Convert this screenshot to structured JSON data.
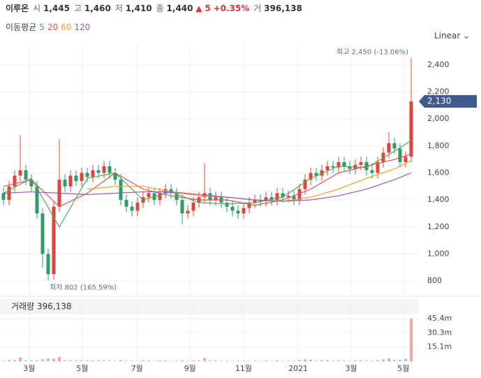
{
  "header": {
    "name": "이루온",
    "open_label": "시",
    "open": "1,445",
    "high_label": "고",
    "high": "1,460",
    "low_label": "저",
    "low": "1,410",
    "close_label": "종",
    "close": "1,440",
    "arrow": "▲",
    "change": "5",
    "change_pct": "+0.35%",
    "vol_label": "거",
    "volume": "396,138"
  },
  "ma_legend": {
    "title": "이동평균",
    "items": [
      "5",
      "20",
      "60",
      "120"
    ]
  },
  "scale_mode": "Linear",
  "chart_data": {
    "type": "candlestick",
    "max_label": "최고 2,450 (-13.06%)",
    "min_label": "최저 802 (165.59%)",
    "last_price": {
      "value": 2130,
      "label": "2,130"
    },
    "up_color": "#e0453c",
    "down_color": "#2a9d6a",
    "xlim": [
      -0.625,
      74.375
    ],
    "xticks": [
      {
        "value": 4.6,
        "label": "3월"
      },
      {
        "value": 14.1,
        "label": "5월"
      },
      {
        "value": 23.9,
        "label": "7월"
      },
      {
        "value": 33.4,
        "label": "9월"
      },
      {
        "value": 43,
        "label": "11월"
      },
      {
        "value": 52.75,
        "label": "2021"
      },
      {
        "value": 62.25,
        "label": "3월"
      },
      {
        "value": 71.6,
        "label": "5월"
      }
    ],
    "ylim": [
      707,
      2493
    ],
    "yticks": [
      800,
      {
        "value": 1000,
        "label": "1,000"
      },
      {
        "value": 1200,
        "label": "1,200"
      },
      {
        "value": 1400,
        "label": "1,400"
      },
      {
        "value": 1600,
        "label": "1,600"
      },
      {
        "value": 1800,
        "label": "1,800"
      },
      {
        "value": 2000,
        "label": "2,000"
      },
      {
        "value": 2200,
        "label": "2,200"
      },
      {
        "value": 2400,
        "label": "2,400"
      }
    ],
    "open": [
      1450,
      1400,
      1500,
      1580,
      1620,
      1550,
      1500,
      1300,
      1000,
      850,
      1350,
      1550,
      1500,
      1580,
      1540,
      1600,
      1570,
      1620,
      1600,
      1650,
      1600,
      1550,
      1400,
      1350,
      1320,
      1380,
      1420,
      1450,
      1400,
      1450,
      1480,
      1450,
      1400,
      1300,
      1320,
      1380,
      1420,
      1450,
      1400,
      1420,
      1380,
      1350,
      1320,
      1300,
      1340,
      1380,
      1400,
      1390,
      1420,
      1400,
      1450,
      1420,
      1430,
      1400,
      1480,
      1550,
      1600,
      1580,
      1620,
      1650,
      1640,
      1680,
      1650,
      1630,
      1660,
      1680,
      1620,
      1600,
      1680,
      1750,
      1820,
      1780,
      1680,
      1720
    ],
    "high": [
      1490,
      1540,
      1620,
      1880,
      1660,
      1590,
      1540,
      1340,
      1040,
      1390,
      1850,
      1590,
      1620,
      1620,
      1640,
      1640,
      1660,
      1660,
      1690,
      1690,
      1640,
      1590,
      1440,
      1390,
      1420,
      1460,
      1490,
      1490,
      1490,
      1520,
      1520,
      1490,
      1440,
      1360,
      1420,
      1460,
      1670,
      1490,
      1460,
      1460,
      1420,
      1390,
      1360,
      1380,
      1420,
      1440,
      1440,
      1460,
      1460,
      1490,
      1490,
      1470,
      1470,
      1520,
      1590,
      1640,
      1640,
      1660,
      1690,
      1690,
      1720,
      1720,
      1690,
      1700,
      1720,
      1720,
      1660,
      1720,
      1790,
      1900,
      1860,
      1820,
      1760,
      2450
    ],
    "low": [
      1360,
      1360,
      1460,
      1540,
      1510,
      1460,
      1260,
      900,
      802,
      810,
      1310,
      1460,
      1460,
      1500,
      1500,
      1530,
      1530,
      1560,
      1560,
      1560,
      1510,
      1360,
      1310,
      1280,
      1280,
      1340,
      1380,
      1360,
      1360,
      1410,
      1410,
      1360,
      1220,
      1260,
      1280,
      1340,
      1380,
      1360,
      1360,
      1340,
      1310,
      1280,
      1260,
      1260,
      1300,
      1340,
      1350,
      1350,
      1360,
      1360,
      1380,
      1380,
      1360,
      1360,
      1440,
      1510,
      1540,
      1540,
      1580,
      1600,
      1600,
      1610,
      1590,
      1590,
      1620,
      1580,
      1560,
      1560,
      1640,
      1710,
      1740,
      1640,
      1640,
      1680
    ],
    "close": [
      1400,
      1500,
      1580,
      1620,
      1550,
      1500,
      1300,
      1000,
      850,
      1350,
      1550,
      1500,
      1580,
      1540,
      1600,
      1570,
      1620,
      1600,
      1650,
      1600,
      1550,
      1400,
      1350,
      1320,
      1380,
      1420,
      1450,
      1400,
      1450,
      1480,
      1450,
      1400,
      1300,
      1320,
      1380,
      1420,
      1450,
      1400,
      1420,
      1380,
      1350,
      1320,
      1300,
      1340,
      1380,
      1400,
      1390,
      1420,
      1400,
      1450,
      1420,
      1430,
      1400,
      1480,
      1550,
      1600,
      1580,
      1620,
      1650,
      1640,
      1680,
      1650,
      1630,
      1660,
      1680,
      1620,
      1600,
      1680,
      1750,
      1820,
      1780,
      1680,
      1720,
      2130
    ],
    "ma_x": [
      0,
      5,
      10,
      15,
      20,
      25,
      30,
      35,
      40,
      45,
      50,
      55,
      60,
      65,
      70,
      73
    ],
    "ma": [
      {
        "name": "5",
        "color": "#4caf50",
        "values": [
          1450,
          1560,
          1200,
          1560,
          1600,
          1400,
          1460,
          1380,
          1370,
          1380,
          1420,
          1560,
          1650,
          1640,
          1760,
          1840
        ]
      },
      {
        "name": "20",
        "color": "#e0565b",
        "values": [
          1500,
          1550,
          1350,
          1450,
          1600,
          1480,
          1430,
          1400,
          1400,
          1360,
          1400,
          1480,
          1600,
          1650,
          1700,
          1740
        ]
      },
      {
        "name": "60",
        "color": "#f0a030",
        "values": [
          null,
          null,
          null,
          1480,
          1500,
          1500,
          1460,
          1430,
          1420,
          1400,
          1390,
          1420,
          1480,
          1560,
          1630,
          1690
        ]
      },
      {
        "name": "120",
        "color": "#9b59b6",
        "values": [
          1450,
          1460,
          1450,
          1440,
          1450,
          1460,
          1460,
          1440,
          1420,
          1400,
          1390,
          1400,
          1430,
          1480,
          1550,
          1600
        ]
      }
    ],
    "volume_title": "거래량 396,138",
    "volume_ylim": [
      0,
      66.2
    ],
    "volume_ticks": [
      {
        "value": 15.1,
        "label": "15.1m"
      },
      {
        "value": 30.3,
        "label": "30.3m"
      },
      {
        "value": 45.4,
        "label": "45.4m"
      }
    ],
    "volume": [
      0.8,
      1.2,
      1.5,
      4,
      1.1,
      0.9,
      1.3,
      2.2,
      3,
      2.5,
      4.5,
      1.2,
      0.8,
      1,
      0.7,
      0.9,
      0.8,
      1,
      1.1,
      0.9,
      0.7,
      1.4,
      0.8,
      0.6,
      0.5,
      0.7,
      0.9,
      0.6,
      0.7,
      0.8,
      0.6,
      0.7,
      1,
      0.6,
      0.7,
      0.8,
      3.5,
      0.9,
      0.7,
      0.6,
      0.7,
      0.6,
      0.8,
      0.6,
      0.5,
      0.6,
      0.5,
      0.7,
      0.6,
      0.8,
      0.6,
      0.5,
      0.7,
      1.2,
      2,
      1.6,
      0.9,
      1,
      1.3,
      0.8,
      1,
      0.9,
      0.7,
      0.8,
      1,
      0.9,
      0.8,
      1.2,
      2,
      3.2,
      1.8,
      1.5,
      2.5,
      45.4
    ]
  }
}
